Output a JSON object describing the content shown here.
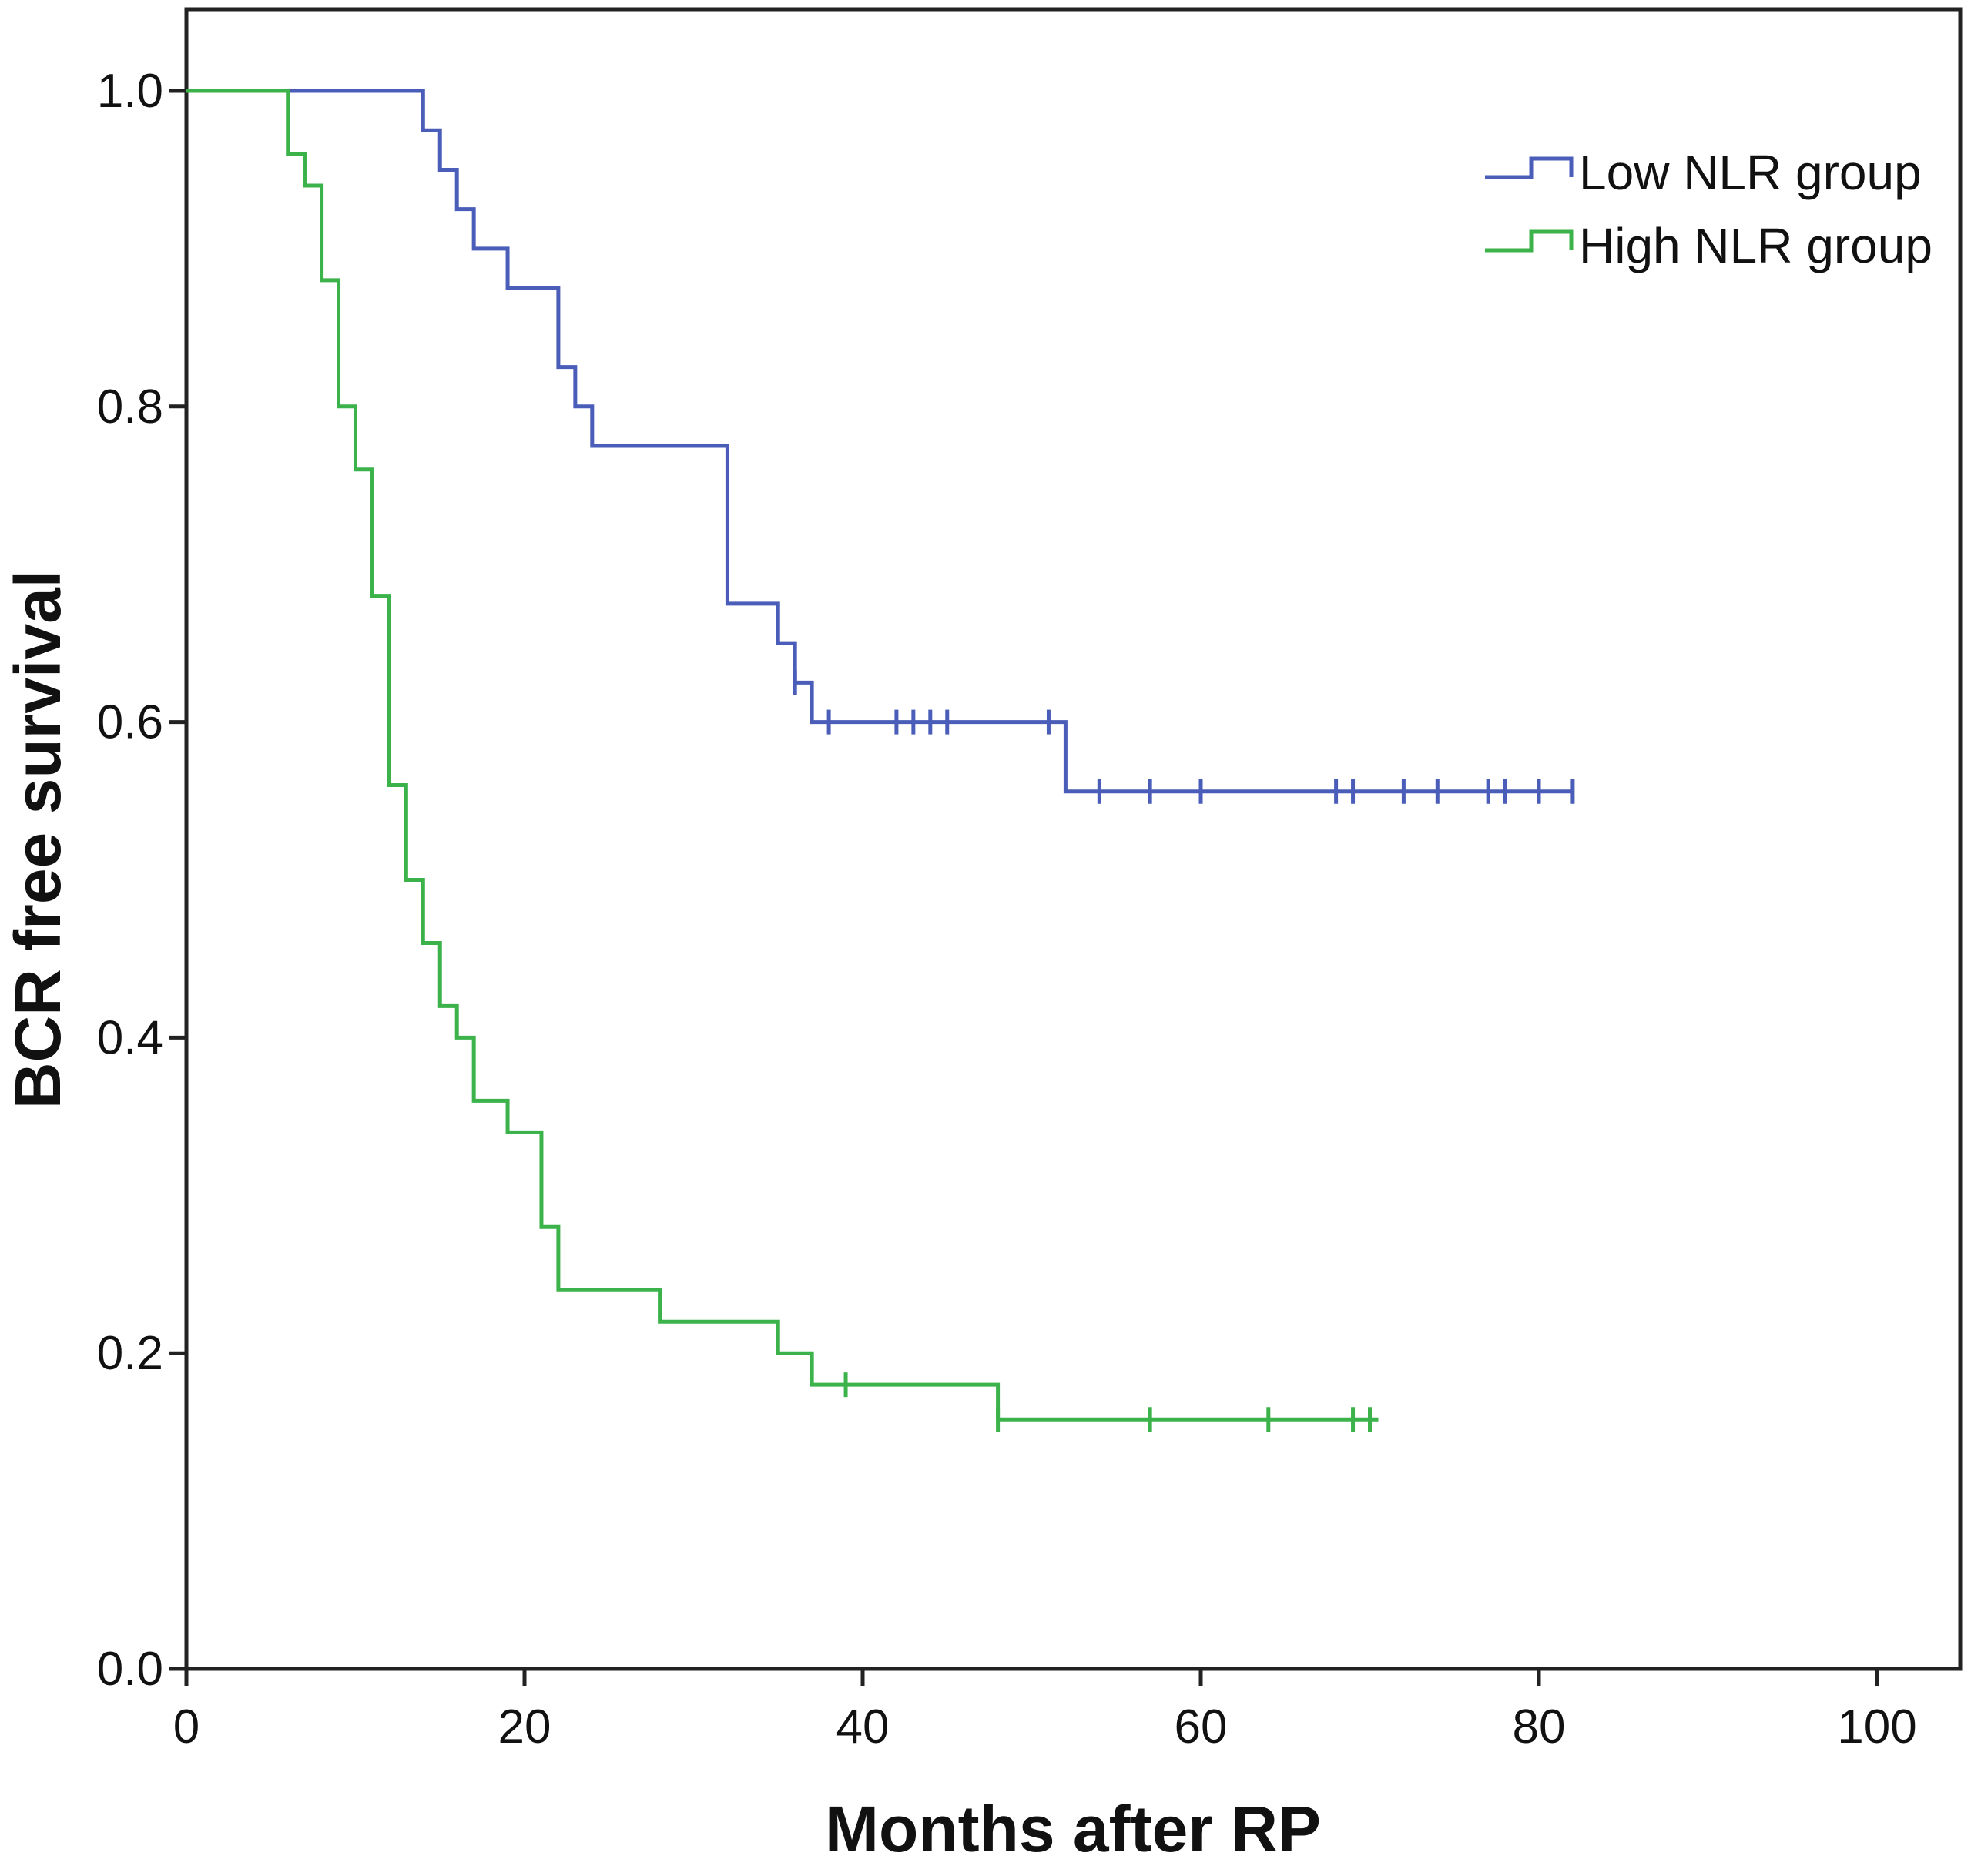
{
  "chart_data": {
    "type": "line",
    "subtype": "kaplan-meier step",
    "title": "",
    "xlabel": "Months after RP",
    "ylabel": "BCR free survival",
    "xlim": [
      0,
      100
    ],
    "ylim": [
      0,
      1
    ],
    "x_ticks": [
      0,
      20,
      40,
      60,
      80,
      100
    ],
    "x_tick_labels": [
      "0",
      "20",
      "40",
      "60",
      "80",
      "100"
    ],
    "y_ticks": [
      0,
      0.2,
      0.4,
      0.6,
      0.8,
      1.0
    ],
    "y_tick_labels": [
      "0.0",
      "0.2",
      "0.4",
      "0.6",
      "0.8",
      "1.0"
    ],
    "grid": false,
    "legend_position": "top-right",
    "series": [
      {
        "name": "Low NLR group",
        "color": "#4a5db8",
        "steps": [
          [
            0,
            1.0
          ],
          [
            14,
            0.975
          ],
          [
            15,
            0.95
          ],
          [
            16,
            0.925
          ],
          [
            17,
            0.9
          ],
          [
            19,
            0.875
          ],
          [
            22,
            0.825
          ],
          [
            23,
            0.8
          ],
          [
            24,
            0.775
          ],
          [
            32,
            0.675
          ],
          [
            35,
            0.65
          ],
          [
            36,
            0.625
          ],
          [
            37,
            0.6
          ],
          [
            52,
            0.556
          ]
        ],
        "end_x": 82,
        "censored": [
          [
            36,
            0.625
          ],
          [
            38,
            0.6
          ],
          [
            42,
            0.6
          ],
          [
            43,
            0.6
          ],
          [
            44,
            0.6
          ],
          [
            45,
            0.6
          ],
          [
            51,
            0.6
          ],
          [
            54,
            0.556
          ],
          [
            57,
            0.556
          ],
          [
            60,
            0.556
          ],
          [
            68,
            0.556
          ],
          [
            69,
            0.556
          ],
          [
            72,
            0.556
          ],
          [
            74,
            0.556
          ],
          [
            77,
            0.556
          ],
          [
            78,
            0.556
          ],
          [
            80,
            0.556
          ],
          [
            82,
            0.556
          ]
        ]
      },
      {
        "name": "High NLR group",
        "color": "#3cb34a",
        "steps": [
          [
            0,
            1.0
          ],
          [
            6,
            0.96
          ],
          [
            7,
            0.94
          ],
          [
            8,
            0.88
          ],
          [
            9,
            0.8
          ],
          [
            10,
            0.76
          ],
          [
            11,
            0.68
          ],
          [
            12,
            0.56
          ],
          [
            13,
            0.5
          ],
          [
            14,
            0.46
          ],
          [
            15,
            0.42
          ],
          [
            16,
            0.4
          ],
          [
            17,
            0.36
          ],
          [
            19,
            0.34
          ],
          [
            21,
            0.28
          ],
          [
            22,
            0.24
          ],
          [
            28,
            0.22
          ],
          [
            35,
            0.2
          ],
          [
            37,
            0.18
          ],
          [
            48,
            0.158
          ]
        ],
        "end_x": 70.5,
        "censored": [
          [
            39,
            0.18
          ],
          [
            48,
            0.158
          ],
          [
            57,
            0.158
          ],
          [
            64,
            0.158
          ],
          [
            69,
            0.158
          ],
          [
            70,
            0.158
          ]
        ]
      }
    ]
  }
}
